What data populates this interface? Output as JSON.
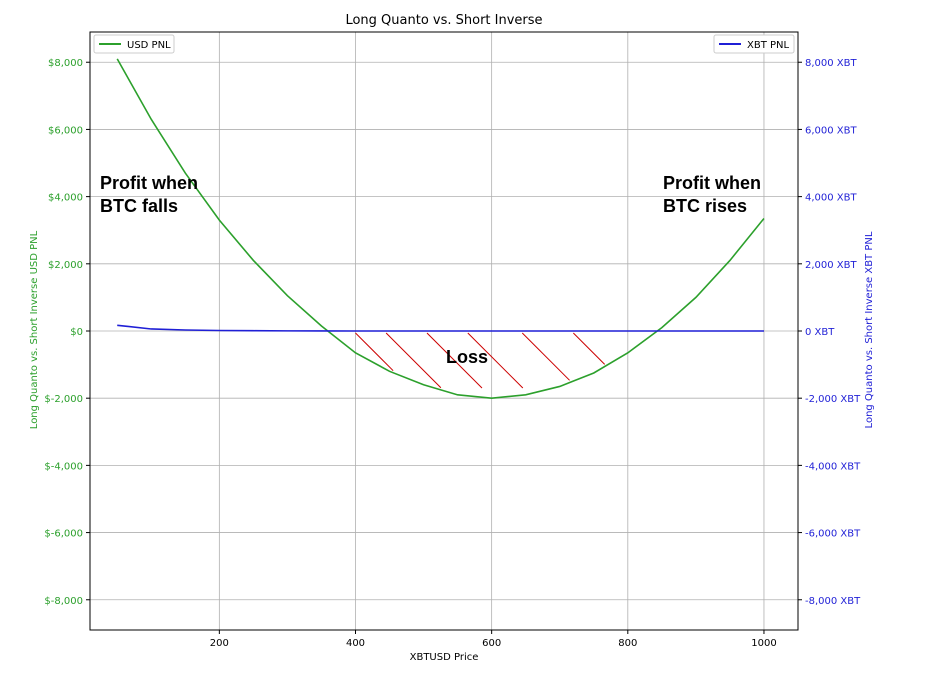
{
  "chart_data": {
    "type": "line",
    "title": "Long Quanto vs. Short Inverse",
    "xlabel": "XBTUSD Price",
    "ylabel_left": "Long Quanto vs. Short Inverse USD PNL",
    "ylabel_right": "Long Quanto vs. Short Inverse XBT PNL",
    "xlim": [
      10,
      1050
    ],
    "ylim_left": [
      -8900,
      8900
    ],
    "ylim_right": [
      -8900,
      8900
    ],
    "x_ticks": [
      200,
      400,
      600,
      800,
      1000
    ],
    "y_ticks_left": [
      {
        "value": 8000,
        "label": "$8,000"
      },
      {
        "value": 6000,
        "label": "$6,000"
      },
      {
        "value": 4000,
        "label": "$4,000"
      },
      {
        "value": 2000,
        "label": "$2,000"
      },
      {
        "value": 0,
        "label": "$0"
      },
      {
        "value": -2000,
        "label": "$-2,000"
      },
      {
        "value": -4000,
        "label": "$-4,000"
      },
      {
        "value": -6000,
        "label": "$-6,000"
      },
      {
        "value": -8000,
        "label": "$-8,000"
      }
    ],
    "y_ticks_right": [
      {
        "value": 8000,
        "label": "8,000 XBT"
      },
      {
        "value": 6000,
        "label": "6,000 XBT"
      },
      {
        "value": 4000,
        "label": "4,000 XBT"
      },
      {
        "value": 2000,
        "label": "2,000 XBT"
      },
      {
        "value": 0,
        "label": "0 XBT"
      },
      {
        "value": -2000,
        "label": "-2,000 XBT"
      },
      {
        "value": -4000,
        "label": "-4,000 XBT"
      },
      {
        "value": -6000,
        "label": "-6,000 XBT"
      },
      {
        "value": -8000,
        "label": "-8,000 XBT"
      }
    ],
    "grid": true,
    "series": [
      {
        "name": "USD PNL",
        "axis": "left",
        "color": "#2ca02c",
        "x": [
          50,
          100,
          150,
          200,
          250,
          300,
          350,
          400,
          450,
          500,
          550,
          600,
          650,
          700,
          750,
          800,
          850,
          900,
          950,
          1000
        ],
        "y": [
          8100,
          6300,
          4700,
          3300,
          2100,
          1050,
          150,
          -650,
          -1200,
          -1600,
          -1900,
          -2000,
          -1900,
          -1650,
          -1250,
          -650,
          100,
          1000,
          2100,
          3350
        ]
      },
      {
        "name": "XBT PNL",
        "axis": "right",
        "color": "#1f1fd6",
        "x": [
          50,
          100,
          150,
          200,
          250,
          300,
          350,
          400,
          450,
          500,
          550,
          600,
          650,
          700,
          750,
          800,
          850,
          900,
          950,
          1000
        ],
        "y": [
          170,
          60,
          30,
          15,
          8,
          4,
          2,
          0,
          0,
          0,
          0,
          0,
          0,
          0,
          0,
          0,
          0,
          0,
          0,
          0
        ]
      }
    ],
    "legend": [
      {
        "name": "USD PNL",
        "placement": "top-left"
      },
      {
        "name": "XBT PNL",
        "placement": "top-right"
      }
    ],
    "annotations": {
      "profit_left_line1": "Profit when",
      "profit_left_line2": "BTC falls",
      "profit_right_line1": "Profit when",
      "profit_right_line2": "BTC rises",
      "loss": "Loss"
    },
    "hatch_color": "#cc0000"
  }
}
